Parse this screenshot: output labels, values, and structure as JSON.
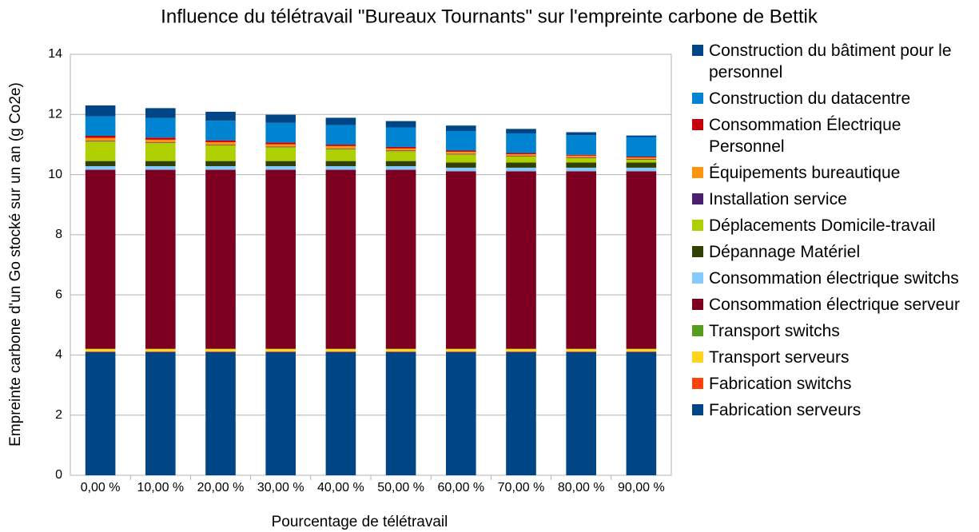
{
  "chart_data": {
    "type": "stacked-bar",
    "title": "Influence du télétravail \"Bureaux Tournants\"  sur l'empreinte carbone de Bettik",
    "xlabel": "Pourcentage de télétravail",
    "ylabel": "Empreinte carbone d'un Go stocké sur un an (g Co2e)",
    "categories": [
      "0,00 %",
      "10,00 %",
      "20,00 %",
      "30,00 %",
      "40,00 %",
      "50,00 %",
      "60,00 %",
      "70,00 %",
      "80,00 %",
      "90,00 %"
    ],
    "ylim": [
      0,
      14
    ],
    "yticks": [
      0,
      2,
      4,
      6,
      8,
      10,
      12,
      14
    ],
    "grid": true,
    "legend": "right",
    "series": [
      {
        "name": "Fabrication serveurs",
        "color": "#004586",
        "values": [
          4.1,
          4.1,
          4.1,
          4.1,
          4.1,
          4.1,
          4.1,
          4.1,
          4.1,
          4.1
        ]
      },
      {
        "name": "Fabrication switchs",
        "color": "#ff420e",
        "values": [
          0.02,
          0.02,
          0.02,
          0.02,
          0.02,
          0.02,
          0.02,
          0.02,
          0.02,
          0.02
        ]
      },
      {
        "name": "Transport serveurs",
        "color": "#ffd320",
        "values": [
          0.08,
          0.08,
          0.08,
          0.08,
          0.08,
          0.08,
          0.08,
          0.08,
          0.08,
          0.08
        ]
      },
      {
        "name": "Transport switchs",
        "color": "#579d1c",
        "values": [
          0.01,
          0.01,
          0.01,
          0.01,
          0.01,
          0.01,
          0.01,
          0.01,
          0.01,
          0.01
        ]
      },
      {
        "name": "Consommation électrique serveur",
        "color": "#7e0021",
        "values": [
          5.95,
          5.95,
          5.95,
          5.95,
          5.95,
          5.95,
          5.9,
          5.9,
          5.9,
          5.9
        ]
      },
      {
        "name": "Consommation électrique switchs",
        "color": "#83caff",
        "values": [
          0.12,
          0.12,
          0.12,
          0.12,
          0.12,
          0.12,
          0.12,
          0.12,
          0.12,
          0.12
        ]
      },
      {
        "name": "Dépannage Matériel",
        "color": "#314004",
        "values": [
          0.17,
          0.17,
          0.17,
          0.17,
          0.17,
          0.17,
          0.17,
          0.17,
          0.17,
          0.17
        ]
      },
      {
        "name": "Déplacements Domicile-travail",
        "color": "#aecf00",
        "values": [
          0.65,
          0.6,
          0.52,
          0.46,
          0.4,
          0.33,
          0.27,
          0.2,
          0.15,
          0.1
        ]
      },
      {
        "name": "Installation service",
        "color": "#4b1f6f",
        "values": [
          0.02,
          0.02,
          0.02,
          0.02,
          0.02,
          0.02,
          0.02,
          0.02,
          0.02,
          0.02
        ]
      },
      {
        "name": "Équipements bureautique",
        "color": "#ff950e",
        "values": [
          0.1,
          0.09,
          0.09,
          0.08,
          0.08,
          0.07,
          0.07,
          0.06,
          0.06,
          0.05
        ]
      },
      {
        "name": "Consommation Électrique Personnel",
        "color": "#c5000b",
        "values": [
          0.07,
          0.07,
          0.06,
          0.06,
          0.05,
          0.05,
          0.04,
          0.04,
          0.03,
          0.03
        ]
      },
      {
        "name": "Construction du datacentre",
        "color": "#0084d1",
        "values": [
          0.65,
          0.65,
          0.65,
          0.65,
          0.65,
          0.65,
          0.65,
          0.65,
          0.65,
          0.65
        ]
      },
      {
        "name": "Construction du bâtiment pour le personnel",
        "color": "#004586",
        "values": [
          0.36,
          0.33,
          0.3,
          0.27,
          0.24,
          0.21,
          0.18,
          0.15,
          0.1,
          0.05
        ]
      }
    ]
  }
}
